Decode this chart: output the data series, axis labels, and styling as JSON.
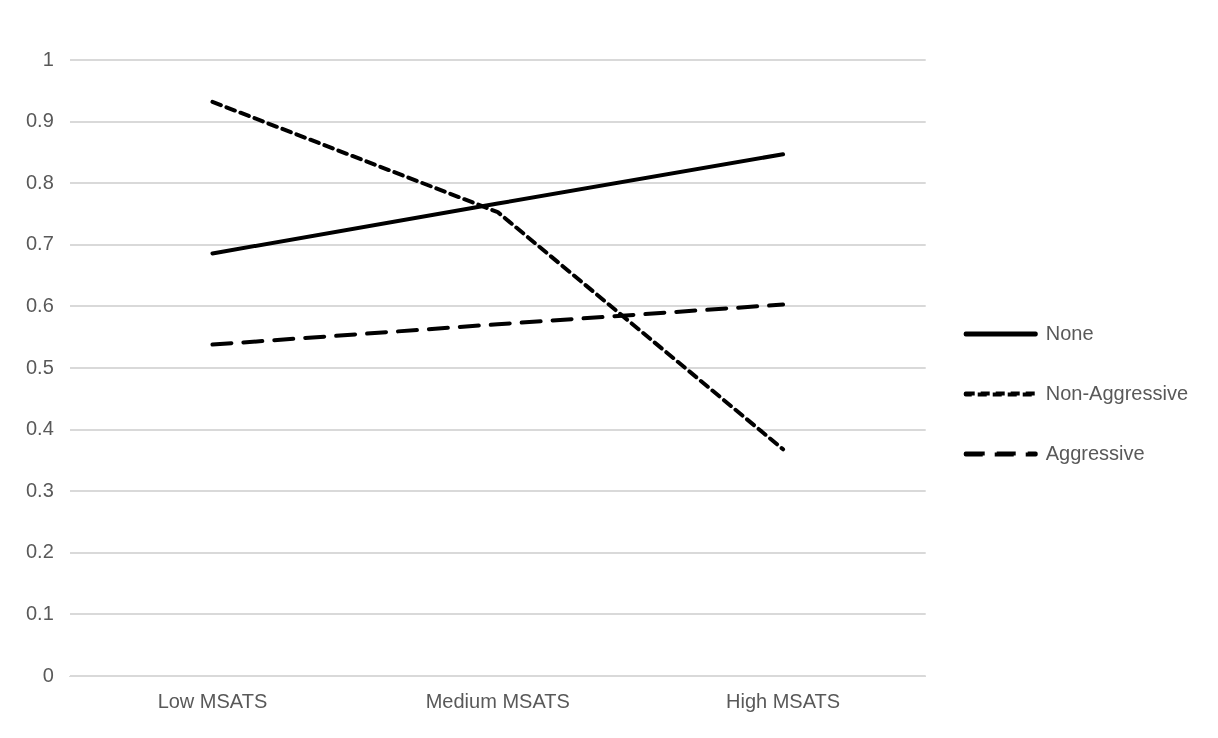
{
  "chart_data": {
    "type": "line",
    "categories": [
      "Low MSATS",
      "Medium MSATS",
      "High MSATS"
    ],
    "series": [
      {
        "name": "None",
        "color": "#000000",
        "line_style": "solid",
        "values": [
          0.686,
          0.767,
          0.847
        ]
      },
      {
        "name": "Non-Aggressive",
        "color": "#000000",
        "line_style": "dotted",
        "values": [
          0.932,
          0.753,
          0.368
        ]
      },
      {
        "name": "Aggressive",
        "color": "#000000",
        "line_style": "dashed",
        "values": [
          0.538,
          0.571,
          0.603
        ]
      }
    ],
    "ylim": [
      0,
      1
    ],
    "yticks": [
      0,
      0.1,
      0.2,
      0.3,
      0.4,
      0.5,
      0.6,
      0.7,
      0.8,
      0.9,
      1
    ],
    "grid": "y",
    "legend": "right",
    "marker": "none"
  }
}
